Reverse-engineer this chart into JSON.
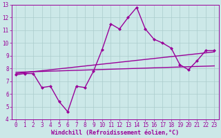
{
  "title": "",
  "xlabel": "Windchill (Refroidissement éolien,°C)",
  "ylabel": "",
  "xlim": [
    -0.5,
    23.5
  ],
  "ylim": [
    4,
    13
  ],
  "xticks": [
    0,
    1,
    2,
    3,
    4,
    5,
    6,
    7,
    8,
    9,
    10,
    11,
    12,
    13,
    14,
    15,
    16,
    17,
    18,
    19,
    20,
    21,
    22,
    23
  ],
  "yticks": [
    4,
    5,
    6,
    7,
    8,
    9,
    10,
    11,
    12,
    13
  ],
  "bg_color": "#cce8e8",
  "line_color": "#990099",
  "grid_color": "#aacccc",
  "line1_x": [
    0,
    1,
    2,
    3,
    4,
    5,
    6,
    7,
    8,
    9,
    10,
    11,
    12,
    13,
    14,
    15,
    16,
    17,
    18,
    19,
    20,
    21,
    22,
    23
  ],
  "line1_y": [
    7.5,
    7.6,
    7.6,
    6.5,
    6.6,
    5.4,
    4.6,
    6.6,
    6.5,
    7.8,
    9.5,
    11.5,
    11.1,
    12.0,
    12.8,
    11.1,
    10.3,
    10.0,
    9.6,
    8.3,
    7.9,
    8.6,
    9.4,
    9.4
  ],
  "line2_x": [
    0,
    23
  ],
  "line2_y": [
    7.6,
    9.3
  ],
  "line3_x": [
    0,
    23
  ],
  "line3_y": [
    7.7,
    8.2
  ],
  "font_size": 6,
  "tick_font_size": 5.5,
  "line_width": 1.0,
  "marker_size": 2.5
}
